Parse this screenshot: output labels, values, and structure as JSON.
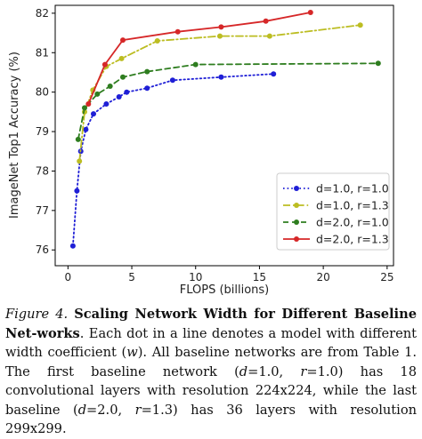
{
  "chart_data": {
    "type": "line",
    "title": "",
    "xlabel": "FLOPS (billions)",
    "ylabel": "ImageNet Top1 Accuracy (%)",
    "xlim": [
      -1,
      25.5
    ],
    "ylim": [
      75.6,
      82.2
    ],
    "xticks": [
      0,
      5,
      10,
      15,
      20,
      25
    ],
    "yticks": [
      76,
      77,
      78,
      79,
      80,
      81,
      82
    ],
    "grid": false,
    "legend_position": "lower-right",
    "series": [
      {
        "name": "d=1.0, r=1.0",
        "color": "#1f1fd6",
        "linestyle": "dotted",
        "x": [
          0.39,
          0.7,
          1.0,
          1.4,
          2.0,
          3.0,
          4.0,
          4.6,
          6.2,
          8.2,
          12.0,
          16.1
        ],
        "y": [
          76.1,
          77.5,
          78.5,
          79.05,
          79.45,
          79.7,
          79.88,
          80.0,
          80.1,
          80.3,
          80.38,
          80.46
        ]
      },
      {
        "name": "d=1.0, r=1.3",
        "color": "#bcbd22",
        "linestyle": "dashdot",
        "x": [
          0.9,
          1.3,
          1.95,
          3.0,
          4.2,
          7.0,
          11.9,
          15.8,
          22.9
        ],
        "y": [
          78.25,
          79.5,
          80.05,
          80.65,
          80.85,
          81.3,
          81.42,
          81.42,
          81.7
        ]
      },
      {
        "name": "d=2.0, r=1.0",
        "color": "#2e7d1f",
        "linestyle": "dashed",
        "x": [
          0.8,
          1.3,
          2.3,
          3.3,
          4.3,
          6.2,
          10.0,
          24.3
        ],
        "y": [
          78.8,
          79.6,
          79.95,
          80.15,
          80.38,
          80.52,
          80.7,
          80.73
        ]
      },
      {
        "name": "d=2.0, r=1.3",
        "color": "#d62728",
        "linestyle": "solid",
        "x": [
          1.6,
          2.9,
          4.3,
          8.6,
          12.0,
          15.5,
          19.0
        ],
        "y": [
          79.7,
          80.7,
          81.32,
          81.53,
          81.65,
          81.8,
          82.02
        ]
      }
    ]
  },
  "caption": {
    "label": "Figure 4.",
    "title": "Scaling Network Width for Different Baseline Net-works",
    "text_1": ". Each dot in a line denotes a model with different width coefficient (",
    "w_symbol": "w",
    "text_2": "). All baseline networks are from Table 1. The first baseline network (",
    "d_symbol": "d",
    "val_1": "=1.0, ",
    "r_symbol": "r",
    "val_2": "=1.0) has 18 convolutional layers with resolution 224x224, while the last baseline (",
    "d_symbol_2": "d",
    "val_3": "=2.0, ",
    "r_symbol_2": "r",
    "val_4": "=1.3) has 36 layers with resolution 299x299."
  }
}
